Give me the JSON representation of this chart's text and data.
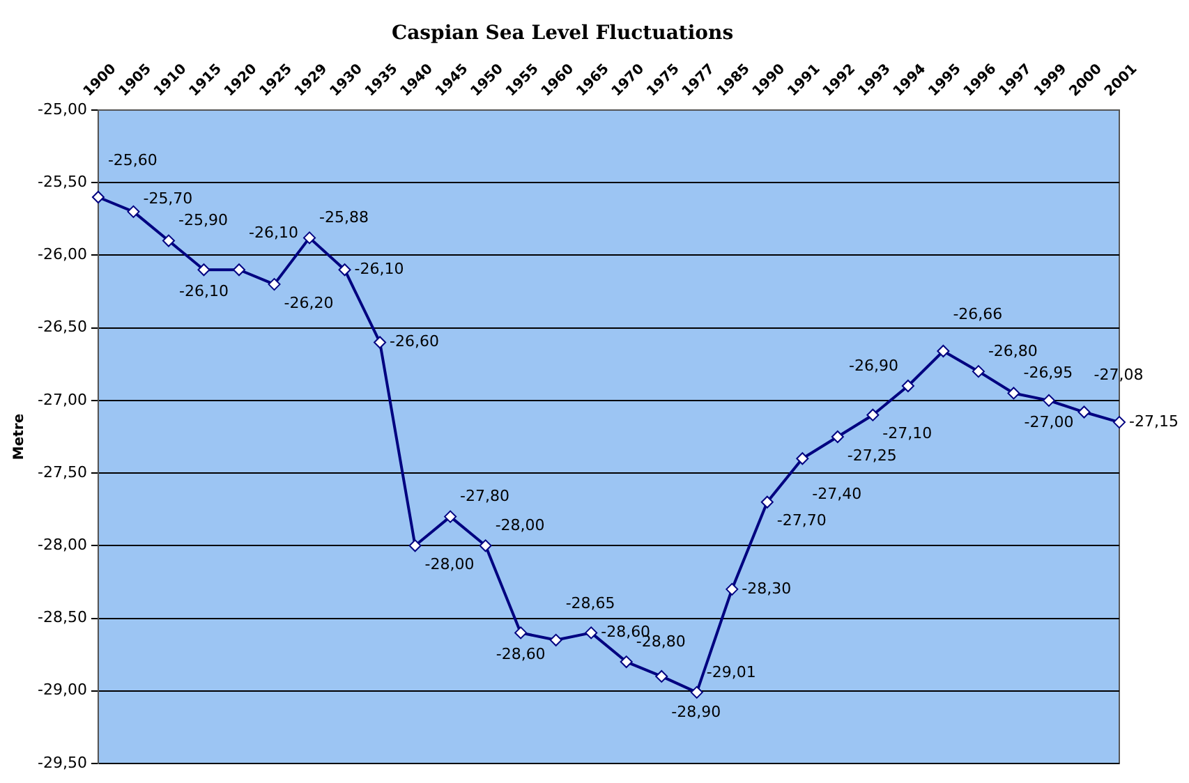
{
  "chart_data": {
    "type": "line",
    "title": "Caspian Sea Level Fluctuations",
    "ylabel": "Metre",
    "categories": [
      "1900",
      "1905",
      "1910",
      "1915",
      "1920",
      "1925",
      "1929",
      "1930",
      "1935",
      "1940",
      "1945",
      "1950",
      "1955",
      "1960",
      "1965",
      "1970",
      "1975",
      "1977",
      "1985",
      "1990",
      "1991",
      "1992",
      "1993",
      "1994",
      "1995",
      "1996",
      "1997",
      "1999",
      "2000",
      "2001"
    ],
    "series": [
      {
        "color": "#000080",
        "values": [
          -25.6,
          -25.7,
          -25.9,
          -26.1,
          -26.1,
          -26.2,
          -25.88,
          -26.1,
          -26.6,
          -28.0,
          -27.8,
          -28.0,
          -28.6,
          -28.65,
          -28.6,
          -28.8,
          -28.9,
          -29.01,
          -28.3,
          -27.7,
          -27.4,
          -27.25,
          -27.1,
          -26.9,
          -26.66,
          -26.8,
          -26.95,
          -27.0,
          -27.08,
          -27.15
        ],
        "value_labels": [
          "-25,60",
          "-25,70",
          "-25,90",
          "-26,10",
          "-26,10",
          "-26,20",
          "-25,88",
          "-26,10",
          "-26,60",
          "-28,00",
          "-27,80",
          "-28,00",
          "-28,60",
          "-28,65",
          "-28,60",
          "-28,80",
          "-28,90",
          "-29,01",
          "-28,30",
          "-27,70",
          "-27,40",
          "-27,25",
          "-27,10",
          "-26,90",
          "-26,66",
          "-26,80",
          "-26,95",
          "-27,00",
          "-27,08",
          "-27,15"
        ]
      }
    ],
    "ylim": [
      -29.5,
      -25
    ],
    "yticks": [
      {
        "value": -29.5,
        "label": "-29,50"
      },
      {
        "value": -29,
        "label": "-29,00"
      },
      {
        "value": -28.5,
        "label": "-28,50"
      },
      {
        "value": -28,
        "label": "-28,00"
      },
      {
        "value": -27.5,
        "label": "-27,50"
      },
      {
        "value": -27,
        "label": "-27,00"
      },
      {
        "value": -26.5,
        "label": "-26,50"
      },
      {
        "value": -26,
        "label": "-26,00"
      },
      {
        "value": -25.5,
        "label": "-25,50"
      },
      {
        "value": -25,
        "label": "-25,00"
      }
    ],
    "grid": "y",
    "legend": false,
    "marker": "diamond",
    "line_style": "solid"
  }
}
